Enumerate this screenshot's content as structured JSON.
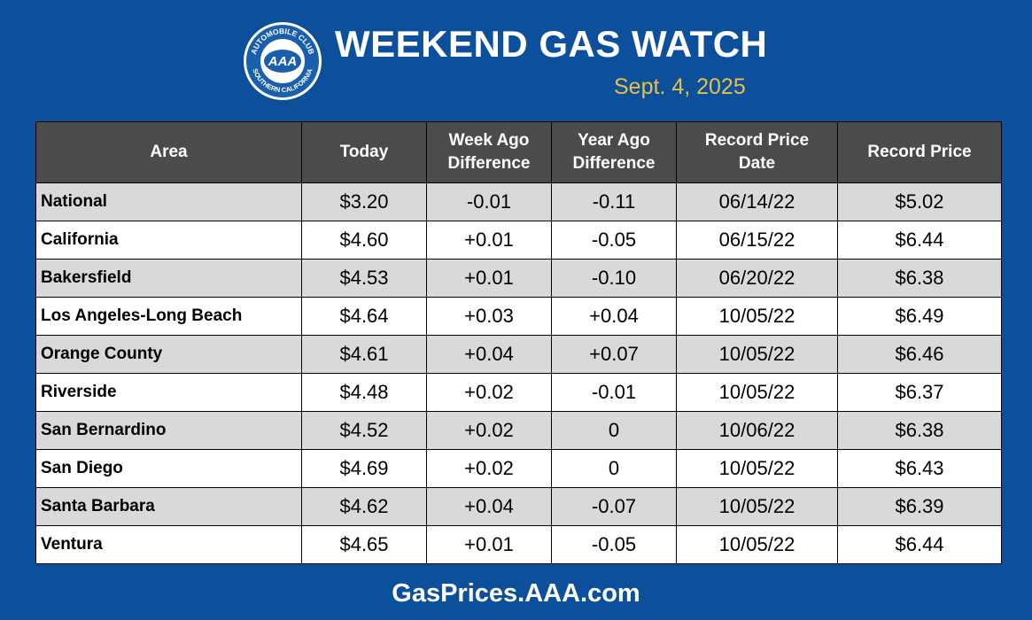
{
  "logo": {
    "top_text": "AUTOMOBILE CLUB",
    "bottom_text": "SOUTHERN CALIFORNIA",
    "center_text": "AAA"
  },
  "header": {
    "title": "WEEKEND GAS WATCH",
    "date": "Sept. 4, 2025"
  },
  "table": {
    "columns": [
      "Area",
      "Today",
      "Week Ago Difference",
      "Year Ago Difference",
      "Record Price Date",
      "Record Price"
    ],
    "rows": [
      [
        "National",
        "$3.20",
        "-0.01",
        "-0.11",
        "06/14/22",
        "$5.02"
      ],
      [
        "California",
        "$4.60",
        "+0.01",
        "-0.05",
        "06/15/22",
        "$6.44"
      ],
      [
        "Bakersfield",
        "$4.53",
        "+0.01",
        "-0.10",
        "06/20/22",
        "$6.38"
      ],
      [
        "Los Angeles-Long Beach",
        "$4.64",
        "+0.03",
        "+0.04",
        "10/05/22",
        "$6.49"
      ],
      [
        "Orange County",
        "$4.61",
        "+0.04",
        "+0.07",
        "10/05/22",
        "$6.46"
      ],
      [
        "Riverside",
        "$4.48",
        "+0.02",
        "-0.01",
        "10/05/22",
        "$6.37"
      ],
      [
        "San Bernardino",
        "$4.52",
        "+0.02",
        "0",
        "10/06/22",
        "$6.38"
      ],
      [
        "San Diego",
        "$4.69",
        "+0.02",
        "0",
        "10/05/22",
        "$6.43"
      ],
      [
        "Santa Barbara",
        "$4.62",
        "+0.04",
        "-0.07",
        "10/05/22",
        "$6.39"
      ],
      [
        "Ventura",
        "$4.65",
        "+0.01",
        "-0.05",
        "10/05/22",
        "$6.44"
      ]
    ]
  },
  "footer": {
    "website": "GasPrices.AAA.com"
  }
}
